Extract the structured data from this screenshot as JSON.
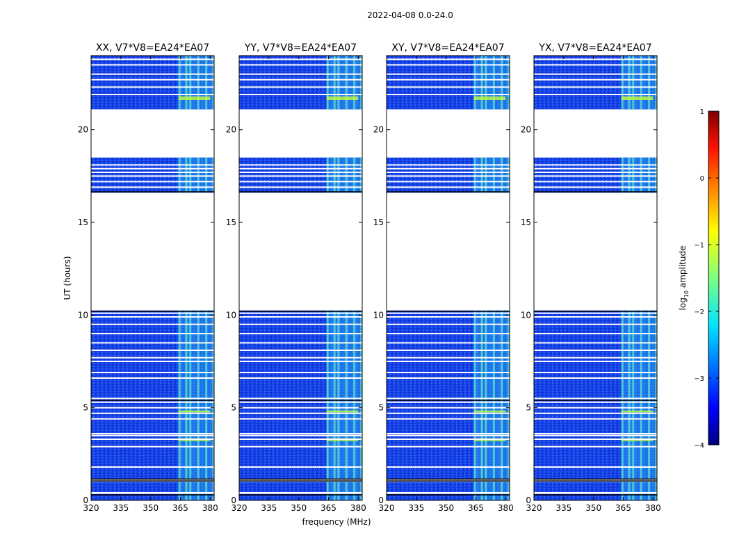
{
  "figure_title": "2022-04-08 0.0-24.0",
  "chart_data": {
    "type": "heatmap",
    "suptitle": "2022-04-08 0.0-24.0",
    "xlabel": "frequency (MHz)",
    "ylabel": "UT (hours)",
    "xlim": [
      320,
      382
    ],
    "ylim": [
      0,
      24
    ],
    "xticks": [
      "320",
      "335",
      "350",
      "365",
      "380"
    ],
    "yticks": [
      "0",
      "5",
      "10",
      "15",
      "20"
    ],
    "panels": [
      {
        "title": "XX, V7*V8=EA24*EA07",
        "pol": "XX"
      },
      {
        "title": "YY, V7*V8=EA24*EA07",
        "pol": "YY"
      },
      {
        "title": "XY, V7*V8=EA24*EA07",
        "pol": "XY"
      },
      {
        "title": "YX, V7*V8=EA24*EA07",
        "pol": "YX"
      }
    ],
    "data_rows_ut": [
      [
        0.0,
        0.35
      ],
      [
        0.45,
        1.0
      ],
      [
        1.15,
        6.0
      ],
      [
        6.0,
        10.25
      ],
      [
        16.6,
        18.5
      ],
      [
        21.1,
        24.0
      ]
    ],
    "flagged_rows_ut": [
      [
        0.35,
        0.45
      ],
      [
        1.0,
        1.15
      ],
      [
        10.25,
        16.6
      ],
      [
        18.5,
        21.1
      ]
    ],
    "rfi_band_mhz": [
      364,
      381
    ],
    "colorbar": {
      "label": "log10 amplitude",
      "label_main": "log",
      "label_sub": "10",
      "label_end": " amplitude",
      "min": -4,
      "max": 1,
      "ticks": [
        "1",
        "0",
        "−1",
        "−2",
        "−3",
        "−4"
      ]
    }
  }
}
